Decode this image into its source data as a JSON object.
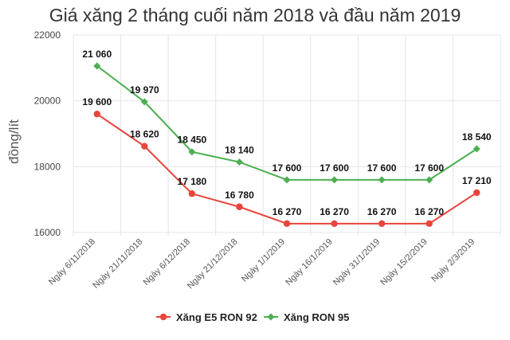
{
  "chart_data": {
    "type": "line",
    "title": "Giá xăng 2 tháng cuối năm 2018 và đầu năm 2019",
    "ylabel": "đồng/lít",
    "xlabel": "",
    "categories": [
      "Ngày 6/11/2018",
      "Ngày 21/11/2018",
      "Ngày 6/12/2018",
      "Ngày 21/12/2018",
      "Ngày 1/1/2019",
      "Ngày 16/1/2019",
      "Ngày 31/1/2019",
      "Ngày 15/2/2019",
      "Ngày 2/3/2019"
    ],
    "yticks": [
      "16000",
      "18000",
      "20000",
      "22000"
    ],
    "ylim": [
      16000,
      22000
    ],
    "grid": true,
    "legend_position": "bottom",
    "series": [
      {
        "name": "Xăng E5 RON 92",
        "color": "#e8453c",
        "values": [
          19600,
          18620,
          17180,
          16780,
          16270,
          16270,
          16270,
          16270,
          17210
        ],
        "labels": [
          "19 600",
          "18 620",
          "17 180",
          "16 780",
          "16 270",
          "16 270",
          "16 270",
          "16 270",
          "17 210"
        ]
      },
      {
        "name": "Xăng RON 95",
        "color": "#4caf50",
        "values": [
          21060,
          19970,
          18450,
          18140,
          17600,
          17600,
          17600,
          17600,
          18540
        ],
        "labels": [
          "21 060",
          "19 970",
          "18 450",
          "18 140",
          "17 600",
          "17 600",
          "17 600",
          "17 600",
          "18 540"
        ]
      }
    ]
  }
}
